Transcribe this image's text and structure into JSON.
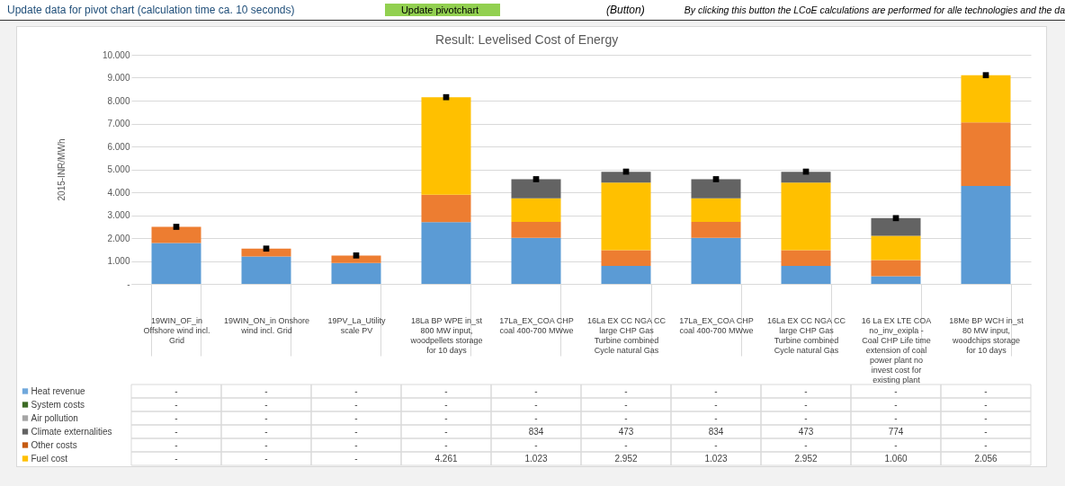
{
  "chart_data": {
    "type": "bar",
    "title": "Result: Levelised Cost of Energy",
    "ylabel": "2015-INR/MWh",
    "annotations": [
      "Update data for pivot chart (calculation time ca. 10 seconds)",
      "Update pivotchart",
      "(Button)",
      "By clicking this button the LCoE calculations are performed for alle technologies and the da"
    ],
    "categories": [
      "19WIN_OF_in Offshore wind incl. Grid",
      "19WIN_ON_in Onshore wind incl. Grid",
      "19PV_La_Utility scale PV",
      "18La BP WPE in_st 800 MW input, woodpellets storage for 10 days",
      "17La_EX_COA CHP coal 400-700 MWwe",
      "16La EX CC NGA CC large CHP Gas Turbine combined Cycle natural Gas",
      "17La_EX_COA CHP coal 400-700 MWwe",
      "16La EX CC NGA CC large CHP Gas Turbine combined Cycle natural Gas",
      "16 La EX LTE COA no_inv_exipla  - Coal CHP Life time extension of coal power plant no invest cost for existing plant",
      "18Me BP WCH in_st 80 MW input, woodchips storage for 10 days"
    ],
    "stacked": true,
    "grid": "y",
    "legend": "bottom",
    "ylim": [
      0,
      10000
    ],
    "yticks": [
      {
        "value": 0,
        "label": "-"
      },
      {
        "value": 1000,
        "label": "1.000"
      },
      {
        "value": 2000,
        "label": "2.000"
      },
      {
        "value": 3000,
        "label": "3.000"
      },
      {
        "value": 4000,
        "label": "4.000"
      },
      {
        "value": 5000,
        "label": "5.000"
      },
      {
        "value": 6000,
        "label": "6.000"
      },
      {
        "value": 7000,
        "label": "7.000"
      },
      {
        "value": 8000,
        "label": "8.000"
      },
      {
        "value": 9000,
        "label": "9.000"
      },
      {
        "value": 10000,
        "label": "10.000"
      }
    ],
    "series": [
      {
        "color": "#5b9bd5",
        "values": [
          1780,
          1200,
          910,
          2700,
          2010,
          780,
          2010,
          780,
          330,
          4270
        ]
      },
      {
        "color": "#ed7d31",
        "values": [
          710,
          340,
          330,
          1190,
          700,
          690,
          700,
          690,
          710,
          2780
        ]
      },
      {
        "name": "Fuel cost",
        "color": "#ffc000",
        "values": [
          0,
          0,
          0,
          4261,
          1023,
          2952,
          1023,
          2952,
          1060,
          2056
        ],
        "value_labels": [
          "-",
          "-",
          "-",
          "4.261",
          "1.023",
          "2.952",
          "1.023",
          "2.952",
          "1.060",
          "2.056"
        ]
      },
      {
        "name": "Other costs",
        "color": "#c55a11",
        "values": [
          0,
          0,
          0,
          0,
          0,
          0,
          0,
          0,
          0,
          0
        ],
        "value_labels": [
          "-",
          "-",
          "-",
          "-",
          "-",
          "-",
          "-",
          "-",
          "-",
          "-"
        ]
      },
      {
        "name": "Climate externalities",
        "color": "#636363",
        "values": [
          0,
          0,
          0,
          0,
          834,
          473,
          834,
          473,
          774,
          0
        ],
        "value_labels": [
          "-",
          "-",
          "-",
          "-",
          "834",
          "473",
          "834",
          "473",
          "774",
          "-"
        ]
      },
      {
        "name": "Air pollution",
        "color": "#a5a5a5",
        "values": [
          0,
          0,
          0,
          0,
          0,
          0,
          0,
          0,
          0,
          0
        ],
        "value_labels": [
          "-",
          "-",
          "-",
          "-",
          "-",
          "-",
          "-",
          "-",
          "-",
          "-"
        ]
      },
      {
        "name": "System costs",
        "color": "#3d6b25",
        "values": [
          0,
          0,
          0,
          0,
          0,
          0,
          0,
          0,
          0,
          0
        ],
        "value_labels": [
          "-",
          "-",
          "-",
          "-",
          "-",
          "-",
          "-",
          "-",
          "-",
          "-"
        ]
      },
      {
        "name": "Heat revenue",
        "color": "#70a8dc",
        "values": [
          0,
          0,
          0,
          0,
          0,
          0,
          0,
          0,
          0,
          0
        ],
        "value_labels": [
          "-",
          "-",
          "-",
          "-",
          "-",
          "-",
          "-",
          "-",
          "-",
          "-"
        ]
      },
      {
        "type": "scatter",
        "color": "#000000",
        "marker": "square",
        "values": [
          2490,
          1540,
          1240,
          8150,
          4570,
          4900,
          4570,
          4900,
          2870,
          9110
        ]
      }
    ]
  }
}
